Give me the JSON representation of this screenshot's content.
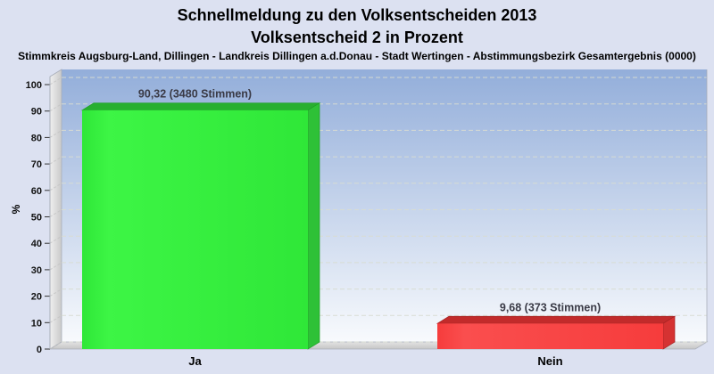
{
  "page": {
    "background": "#DCE1F1"
  },
  "header": {
    "title": "Schnellmeldung zu den Volksentscheiden 2013",
    "subtitle": "Volksentscheid 2 in Prozent",
    "region": "Stimmkreis Augsburg-Land, Dillingen - Landkreis Dillingen a.d.Donau - Stadt Wertingen - Abstimmungsbezirk Gesamtergebnis (0000)"
  },
  "chart_data": {
    "type": "bar",
    "style": "3d-vertical-bars",
    "title": "Schnellmeldung zu den Volksentscheiden 2013",
    "subtitle": "Volksentscheid 2 in Prozent",
    "categories": [
      "Ja",
      "Nein"
    ],
    "values": [
      90.32,
      9.68
    ],
    "votes": [
      3480,
      373
    ],
    "value_labels": [
      "90,32 (3480 Stimmen)",
      "9,68 (373 Stimmen)"
    ],
    "ylabel": "%",
    "ylim": [
      0,
      100
    ],
    "yticks": [
      0,
      10,
      20,
      30,
      40,
      50,
      60,
      70,
      80,
      90,
      100
    ],
    "grid": "horizontal-dashed",
    "legend": "none",
    "bars": [
      {
        "category": "Ja",
        "front": "#2FE738",
        "front_hi": "#3DF545",
        "top": "#28AF30",
        "side": "#2EC137",
        "edge": "#1E9E26"
      },
      {
        "category": "Nein",
        "front": "#F63C3C",
        "front_hi": "#FA4E4E",
        "top": "#C22B2B",
        "side": "#D53232",
        "edge": "#A32222"
      }
    ],
    "colors": {
      "wall_top": "#93AEDA",
      "wall_bottom": "#F8FAFD",
      "side_wall_light": "#EFEFEF",
      "side_wall_dark": "#C9C9C9",
      "floor_light": "#E2E2E2",
      "floor_dark": "#C6C6C6",
      "grid": "#D8DCD2",
      "wall_grid": "#C3C3C3",
      "box_edge": "#A9AEB9",
      "tick_color": "#333333",
      "tick_text": "#111111",
      "value_label_text": "#3A3A46",
      "category_text": "#000000"
    }
  }
}
